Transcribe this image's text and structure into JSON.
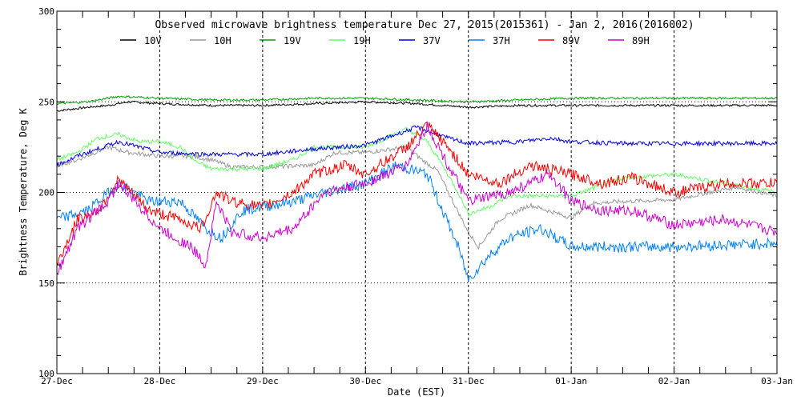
{
  "chart_data": {
    "type": "line",
    "title": "Observed microwave brightness temperature Dec 27, 2015(2015361) - Jan  2, 2016(2016002)",
    "xlabel": "Date (EST)",
    "ylabel": "Brightness Temperature, Deg K",
    "xlim": [
      0,
      7
    ],
    "ylim": [
      100,
      300
    ],
    "x_ticks": [
      "27-Dec",
      "28-Dec",
      "29-Dec",
      "30-Dec",
      "31-Dec",
      "01-Jan",
      "02-Jan",
      "03-Jan"
    ],
    "y_ticks": [
      100,
      150,
      200,
      250,
      300
    ],
    "grid": "dotted at 150, 200, 250 and at each day",
    "x_units": "days since 27-Dec 00:00 EST",
    "series": [
      {
        "name": "10V",
        "color": "#000000",
        "points": [
          [
            0,
            245
          ],
          [
            0.3,
            247
          ],
          [
            0.5,
            248
          ],
          [
            0.7,
            250
          ],
          [
            1,
            249
          ],
          [
            1.5,
            248
          ],
          [
            2,
            248
          ],
          [
            2.5,
            249
          ],
          [
            3,
            250
          ],
          [
            3.5,
            249
          ],
          [
            4,
            247
          ],
          [
            4.5,
            248
          ],
          [
            5,
            248
          ],
          [
            6,
            248
          ],
          [
            7,
            248
          ]
        ]
      },
      {
        "name": "10H",
        "color": "#999999",
        "points": [
          [
            0,
            215
          ],
          [
            0.2,
            218
          ],
          [
            0.5,
            225
          ],
          [
            0.7,
            222
          ],
          [
            1,
            220
          ],
          [
            1.3,
            220
          ],
          [
            1.5,
            218
          ],
          [
            1.7,
            214
          ],
          [
            2,
            214
          ],
          [
            2.5,
            215
          ],
          [
            2.7,
            222
          ],
          [
            3,
            222
          ],
          [
            3.4,
            225
          ],
          [
            3.55,
            218
          ],
          [
            3.7,
            212
          ],
          [
            3.85,
            195
          ],
          [
            4,
            178
          ],
          [
            4.1,
            170
          ],
          [
            4.3,
            185
          ],
          [
            4.6,
            193
          ],
          [
            5,
            186
          ],
          [
            5.2,
            194
          ],
          [
            5.5,
            195
          ],
          [
            6,
            196
          ],
          [
            6.6,
            203
          ],
          [
            7,
            198
          ]
        ]
      },
      {
        "name": "19V",
        "color": "#00a000",
        "points": [
          [
            0,
            249
          ],
          [
            0.3,
            250
          ],
          [
            0.5,
            252
          ],
          [
            0.6,
            253
          ],
          [
            1,
            252
          ],
          [
            1.5,
            251
          ],
          [
            2,
            251
          ],
          [
            2.5,
            252
          ],
          [
            3,
            252
          ],
          [
            3.5,
            251
          ],
          [
            4,
            250
          ],
          [
            4.5,
            251
          ],
          [
            5,
            252
          ],
          [
            6,
            252
          ],
          [
            7,
            252
          ]
        ]
      },
      {
        "name": "19H",
        "color": "#66ff66",
        "points": [
          [
            0,
            218
          ],
          [
            0.2,
            222
          ],
          [
            0.4,
            230
          ],
          [
            0.6,
            232
          ],
          [
            0.8,
            228
          ],
          [
            1,
            228
          ],
          [
            1.2,
            225
          ],
          [
            1.35,
            217
          ],
          [
            1.5,
            213
          ],
          [
            2,
            213
          ],
          [
            2.3,
            218
          ],
          [
            2.5,
            225
          ],
          [
            3,
            225
          ],
          [
            3.4,
            235
          ],
          [
            3.6,
            228
          ],
          [
            3.75,
            215
          ],
          [
            3.9,
            200
          ],
          [
            4,
            188
          ],
          [
            4.2,
            192
          ],
          [
            4.4,
            198
          ],
          [
            5,
            198
          ],
          [
            5.5,
            208
          ],
          [
            6,
            210
          ],
          [
            6.5,
            205
          ],
          [
            7,
            200
          ]
        ]
      },
      {
        "name": "37V",
        "color": "#0000e0",
        "points": [
          [
            0,
            215
          ],
          [
            0.2,
            220
          ],
          [
            0.6,
            228
          ],
          [
            1,
            222
          ],
          [
            1.5,
            221
          ],
          [
            2,
            221
          ],
          [
            2.5,
            224
          ],
          [
            3,
            226
          ],
          [
            3.3,
            232
          ],
          [
            3.5,
            236
          ],
          [
            3.8,
            230
          ],
          [
            4,
            227
          ],
          [
            4.5,
            228
          ],
          [
            4.8,
            230
          ],
          [
            5,
            228
          ],
          [
            5.5,
            227
          ],
          [
            6,
            227
          ],
          [
            6.5,
            227
          ],
          [
            7,
            227
          ]
        ]
      },
      {
        "name": "37H",
        "color": "#0080ff",
        "points": [
          [
            0,
            185
          ],
          [
            0.3,
            190
          ],
          [
            0.6,
            205
          ],
          [
            0.9,
            195
          ],
          [
            1.2,
            195
          ],
          [
            1.45,
            180
          ],
          [
            1.6,
            175
          ],
          [
            1.8,
            190
          ],
          [
            2,
            192
          ],
          [
            2.3,
            195
          ],
          [
            2.6,
            200
          ],
          [
            3,
            205
          ],
          [
            3.3,
            215
          ],
          [
            3.6,
            210
          ],
          [
            3.75,
            190
          ],
          [
            3.9,
            170
          ],
          [
            4,
            152
          ],
          [
            4.2,
            165
          ],
          [
            4.4,
            175
          ],
          [
            4.7,
            180
          ],
          [
            5,
            170
          ],
          [
            5.3,
            170
          ],
          [
            6,
            170
          ],
          [
            6.5,
            171
          ],
          [
            7,
            172
          ]
        ]
      },
      {
        "name": "89V",
        "color": "#ff0000",
        "points": [
          [
            0,
            160
          ],
          [
            0.2,
            185
          ],
          [
            0.4,
            190
          ],
          [
            0.6,
            207
          ],
          [
            0.9,
            190
          ],
          [
            1.2,
            185
          ],
          [
            1.4,
            180
          ],
          [
            1.55,
            200
          ],
          [
            1.7,
            195
          ],
          [
            2,
            192
          ],
          [
            2.3,
            200
          ],
          [
            2.5,
            210
          ],
          [
            2.8,
            215
          ],
          [
            3,
            210
          ],
          [
            3.4,
            225
          ],
          [
            3.6,
            237
          ],
          [
            3.8,
            225
          ],
          [
            4,
            210
          ],
          [
            4.3,
            205
          ],
          [
            4.6,
            215
          ],
          [
            5,
            210
          ],
          [
            5.3,
            205
          ],
          [
            5.6,
            208
          ],
          [
            6,
            200
          ],
          [
            6.5,
            205
          ],
          [
            7,
            205
          ]
        ]
      },
      {
        "name": "89H",
        "color": "#d000d0",
        "points": [
          [
            0,
            155
          ],
          [
            0.2,
            180
          ],
          [
            0.5,
            195
          ],
          [
            0.6,
            205
          ],
          [
            1,
            180
          ],
          [
            1.3,
            170
          ],
          [
            1.45,
            160
          ],
          [
            1.55,
            195
          ],
          [
            1.7,
            178
          ],
          [
            2,
            175
          ],
          [
            2.3,
            180
          ],
          [
            2.6,
            200
          ],
          [
            3,
            205
          ],
          [
            3.4,
            215
          ],
          [
            3.6,
            237
          ],
          [
            3.8,
            215
          ],
          [
            4,
            195
          ],
          [
            4.4,
            200
          ],
          [
            4.8,
            210
          ],
          [
            5,
            195
          ],
          [
            5.3,
            190
          ],
          [
            5.6,
            190
          ],
          [
            6,
            182
          ],
          [
            6.5,
            185
          ],
          [
            7,
            178
          ]
        ]
      }
    ]
  }
}
